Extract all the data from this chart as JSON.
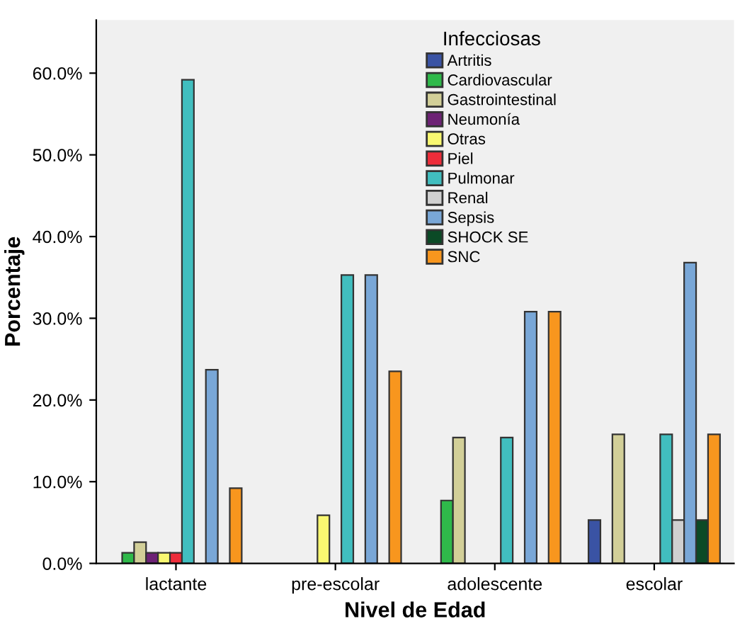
{
  "chart_data": {
    "type": "bar",
    "xlabel": "Nivel de Edad",
    "ylabel": "Porcentaje",
    "legend_title": "Infecciosas",
    "categories": [
      "lactante",
      "pre-escolar",
      "adolescente",
      "escolar"
    ],
    "series": [
      {
        "name": "Artritis",
        "color": "#3a53a4",
        "values": [
          null,
          null,
          null,
          5.3
        ]
      },
      {
        "name": "Cardiovascular",
        "color": "#2fb94a",
        "values": [
          1.3,
          null,
          7.7,
          null
        ]
      },
      {
        "name": "Gastrointestinal",
        "color": "#d2cf98",
        "values": [
          2.6,
          null,
          15.4,
          15.8
        ]
      },
      {
        "name": "Neumonía",
        "color": "#6d2275",
        "values": [
          1.3,
          null,
          null,
          null
        ]
      },
      {
        "name": "Otras",
        "color": "#f9f871",
        "values": [
          1.3,
          5.9,
          null,
          null
        ]
      },
      {
        "name": "Piel",
        "color": "#ee2d3a",
        "values": [
          1.3,
          null,
          null,
          null
        ]
      },
      {
        "name": "Pulmonar",
        "color": "#41bebf",
        "values": [
          59.2,
          35.3,
          15.4,
          15.8
        ]
      },
      {
        "name": "Renal",
        "color": "#d0d0d0",
        "values": [
          null,
          null,
          null,
          5.3
        ]
      },
      {
        "name": "Sepsis",
        "color": "#79a7d7",
        "values": [
          23.7,
          35.3,
          30.8,
          36.8
        ]
      },
      {
        "name": "SHOCK SE",
        "color": "#0b4a26",
        "values": [
          null,
          null,
          null,
          5.3
        ]
      },
      {
        "name": "SNC",
        "color": "#f8961e",
        "values": [
          9.2,
          23.5,
          30.8,
          15.8
        ]
      }
    ],
    "ylim": [
      0,
      66.5
    ],
    "yticks": [
      {
        "value": 0,
        "label": "0.0%"
      },
      {
        "value": 10,
        "label": "10.0%"
      },
      {
        "value": 20,
        "label": "20.0%"
      },
      {
        "value": 30,
        "label": "30.0%"
      },
      {
        "value": 40,
        "label": "40.0%"
      },
      {
        "value": 50,
        "label": "50.0%"
      },
      {
        "value": 60,
        "label": "60.0%"
      }
    ],
    "grid": false,
    "legend": "top"
  }
}
